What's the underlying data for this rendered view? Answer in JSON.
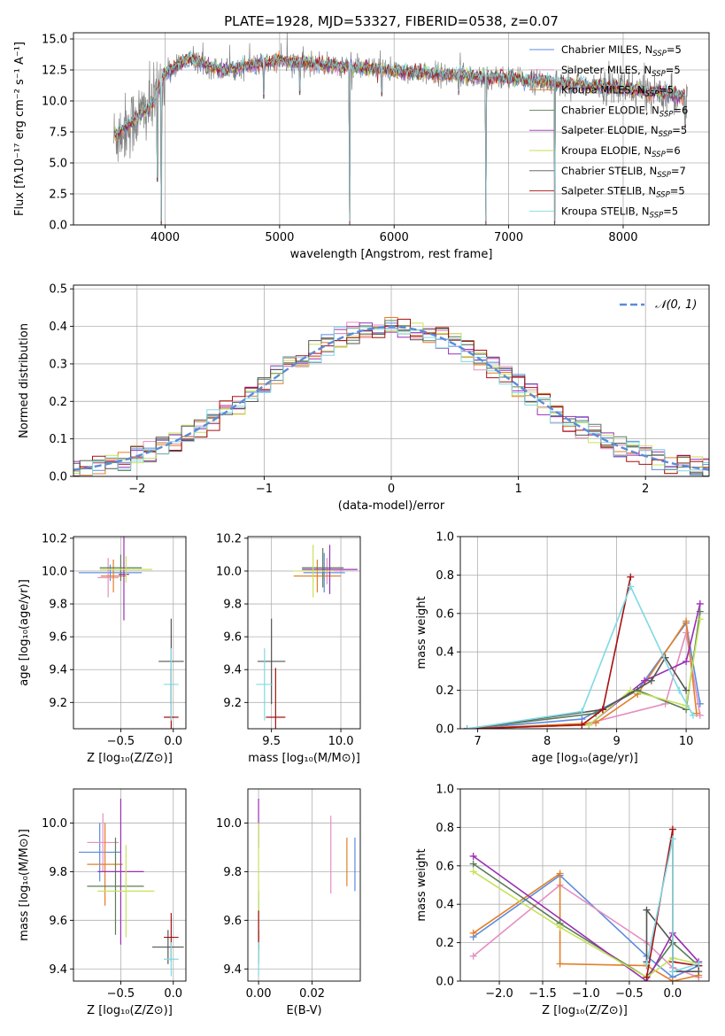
{
  "title": "PLATE=1928, MJD=53327, FIBERID=0538, z=0.07",
  "colors": {
    "chabrier_miles": "#5b8be0",
    "salpeter_miles": "#e58fc0",
    "kroupa_miles": "#e37f28",
    "chabrier_elodie": "#5b7d58",
    "salpeter_elodie": "#9a2fb5",
    "kroupa_elodie": "#c6e25a",
    "chabrier_stelib": "#555555",
    "salpeter_stelib": "#a81010",
    "kroupa_stelib": "#7fd9e3",
    "data": "#808080",
    "gaussian": "#5b8bd8"
  },
  "chart_data": [
    {
      "id": "spectrum",
      "type": "line",
      "title": "PLATE=1928, MJD=53327, FIBERID=0538, z=0.07",
      "xlabel": "wavelength [Angstrom, rest frame]",
      "ylabel": "Flux [fλ10⁻¹⁷ erg cm⁻² s⁻¹ A⁻¹]",
      "xlim": [
        3200,
        8750
      ],
      "ylim": [
        0,
        15.5
      ],
      "xticks": [
        "4000",
        "5000",
        "6000",
        "7000",
        "8000"
      ],
      "yticks": [
        "0.0",
        "2.5",
        "5.0",
        "7.5",
        "10.0",
        "12.5",
        "15.0"
      ],
      "legend_position": "top-right",
      "legend": [
        {
          "label": "Chabrier MILES, N",
          "sub": "SSP",
          "tail": "=5",
          "color_key": "chabrier_miles"
        },
        {
          "label": "Salpeter MILES, N",
          "sub": "SSP",
          "tail": "=5",
          "color_key": "salpeter_miles"
        },
        {
          "label": "Kroupa MILES, N",
          "sub": "SSP",
          "tail": "=5",
          "color_key": "kroupa_miles"
        },
        {
          "label": "Chabrier ELODIE, N",
          "sub": "SSP",
          "tail": "=6",
          "color_key": "chabrier_elodie"
        },
        {
          "label": "Salpeter ELODIE, N",
          "sub": "SSP",
          "tail": "=5",
          "color_key": "salpeter_elodie"
        },
        {
          "label": "Kroupa ELODIE, N",
          "sub": "SSP",
          "tail": "=6",
          "color_key": "kroupa_elodie"
        },
        {
          "label": "Chabrier STELIB, N",
          "sub": "SSP",
          "tail": "=7",
          "color_key": "chabrier_stelib"
        },
        {
          "label": "Salpeter STELIB, N",
          "sub": "SSP",
          "tail": "=5",
          "color_key": "salpeter_stelib"
        },
        {
          "label": "Kroupa STELIB, N",
          "sub": "SSP",
          "tail": "=5",
          "color_key": "kroupa_stelib"
        }
      ],
      "continuum_anchors": [
        [
          3550,
          7.0
        ],
        [
          3700,
          8.2
        ],
        [
          3900,
          9.8
        ],
        [
          4000,
          12.2
        ],
        [
          4200,
          13.4
        ],
        [
          4500,
          12.5
        ],
        [
          5000,
          13.2
        ],
        [
          5500,
          12.8
        ],
        [
          6000,
          12.4
        ],
        [
          6500,
          12.1
        ],
        [
          7000,
          11.8
        ],
        [
          7500,
          11.4
        ],
        [
          8000,
          11.0
        ],
        [
          8400,
          10.6
        ],
        [
          8560,
          10.3
        ]
      ],
      "absorption_lines": [
        [
          3934,
          3.5
        ],
        [
          3969,
          0.0
        ],
        [
          4861,
          10.2
        ],
        [
          5175,
          10.5
        ],
        [
          5612,
          0.0
        ],
        [
          5893,
          10.4
        ],
        [
          6563,
          10.5
        ],
        [
          6800,
          0.0
        ],
        [
          7400,
          0.0
        ],
        [
          8542,
          7.8
        ]
      ]
    },
    {
      "id": "residuals",
      "type": "line",
      "xlabel": "(data-model)/error",
      "ylabel": "Normed distribution",
      "xlim": [
        -2.5,
        2.5
      ],
      "ylim": [
        0,
        0.51
      ],
      "xticks": [
        "−2",
        "−1",
        "0",
        "1",
        "2"
      ],
      "yticks": [
        "0.0",
        "0.1",
        "0.2",
        "0.3",
        "0.4",
        "0.5"
      ],
      "legend_position": "top-right",
      "gaussian_label": "𝒩(0, 1)",
      "bin_width": 0.1
    },
    {
      "id": "age_vs_Z",
      "type": "scatter",
      "xlabel": "Z [log₁₀(Z/Z⊙)]",
      "ylabel": "age  [log₁₀(age/yr)]",
      "xlim": [
        -0.95,
        0.12
      ],
      "ylim": [
        9.04,
        10.21
      ],
      "xticks": [
        "−0.5",
        "0.0"
      ],
      "yticks": [
        "9.2",
        "9.4",
        "9.6",
        "9.8",
        "10.0",
        "10.2"
      ],
      "points": [
        {
          "k": "chabrier_miles",
          "x": -0.6,
          "xe": 0.3,
          "y": 9.99,
          "ye": 0.05
        },
        {
          "k": "salpeter_miles",
          "x": -0.62,
          "xe": 0.1,
          "y": 9.96,
          "ye": 0.12
        },
        {
          "k": "kroupa_miles",
          "x": -0.57,
          "xe": 0.12,
          "y": 9.97,
          "ye": 0.1
        },
        {
          "k": "chabrier_elodie",
          "x": -0.5,
          "xe": 0.2,
          "y": 10.02,
          "ye": 0.08
        },
        {
          "k": "salpeter_elodie",
          "x": -0.47,
          "xe": 0.05,
          "y": 9.98,
          "ye": 0.28
        },
        {
          "k": "kroupa_elodie",
          "x": -0.45,
          "xe": 0.25,
          "y": 10.01,
          "ye": 0.08
        },
        {
          "k": "chabrier_stelib",
          "x": -0.02,
          "xe": 0.12,
          "y": 9.45,
          "ye": 0.26
        },
        {
          "k": "salpeter_stelib",
          "x": -0.02,
          "xe": 0.07,
          "y": 9.11,
          "ye": 0.3
        },
        {
          "k": "kroupa_stelib",
          "x": -0.02,
          "xe": 0.07,
          "y": 9.31,
          "ye": 0.22
        }
      ]
    },
    {
      "id": "age_vs_mass",
      "type": "scatter",
      "xlabel": "mass [log₁₀(M/M⊙)]",
      "ylabel": "",
      "xlim": [
        9.33,
        10.14
      ],
      "ylim": [
        9.04,
        10.21
      ],
      "xticks": [
        "9.5",
        "10.0"
      ],
      "yticks": [
        "9.2",
        "9.4",
        "9.6",
        "9.8",
        "10.0",
        "10.2"
      ],
      "points": [
        {
          "k": "chabrier_miles",
          "x": 9.88,
          "xe": 0.15,
          "y": 9.99,
          "ye": 0.12
        },
        {
          "k": "salpeter_miles",
          "x": 9.9,
          "xe": 0.12,
          "y": 10.0,
          "ye": 0.08
        },
        {
          "k": "kroupa_miles",
          "x": 9.83,
          "xe": 0.17,
          "y": 9.97,
          "ye": 0.1
        },
        {
          "k": "chabrier_elodie",
          "x": 9.87,
          "xe": 0.15,
          "y": 10.02,
          "ye": 0.12
        },
        {
          "k": "salpeter_elodie",
          "x": 9.92,
          "xe": 0.2,
          "y": 10.01,
          "ye": 0.15
        },
        {
          "k": "kroupa_elodie",
          "x": 9.8,
          "xe": 0.15,
          "y": 10.0,
          "ye": 0.16
        },
        {
          "k": "chabrier_stelib",
          "x": 9.5,
          "xe": 0.1,
          "y": 9.45,
          "ye": 0.26
        },
        {
          "k": "salpeter_stelib",
          "x": 9.53,
          "xe": 0.07,
          "y": 9.11,
          "ye": 0.3
        },
        {
          "k": "kroupa_stelib",
          "x": 9.45,
          "xe": 0.06,
          "y": 9.31,
          "ye": 0.22
        }
      ]
    },
    {
      "id": "weight_vs_age",
      "type": "line",
      "xlabel": "age  [log₁₀(age/yr)]",
      "ylabel": "mass weight",
      "xlim": [
        6.75,
        10.33
      ],
      "ylim": [
        0,
        1.0
      ],
      "xticks": [
        "7",
        "8",
        "9",
        "10"
      ],
      "yticks": [
        "0.0",
        "0.2",
        "0.4",
        "0.6",
        "0.8",
        "1.0"
      ],
      "series": [
        {
          "k": "chabrier_miles",
          "x": [
            6.85,
            8.5,
            9.3,
            10.0,
            10.2
          ],
          "y": [
            0.0,
            0.05,
            0.2,
            0.55,
            0.13
          ]
        },
        {
          "k": "salpeter_miles",
          "x": [
            6.85,
            8.5,
            9.7,
            10.0,
            10.2
          ],
          "y": [
            0.0,
            0.02,
            0.13,
            0.5,
            0.07
          ]
        },
        {
          "k": "kroupa_miles",
          "x": [
            6.85,
            8.7,
            9.3,
            10.0,
            10.15
          ],
          "y": [
            0.0,
            0.03,
            0.18,
            0.56,
            0.08
          ]
        },
        {
          "k": "chabrier_elodie",
          "x": [
            6.85,
            8.7,
            9.3,
            10.0,
            10.2
          ],
          "y": [
            0.0,
            0.08,
            0.2,
            0.1,
            0.61
          ]
        },
        {
          "k": "salpeter_elodie",
          "x": [
            6.85,
            8.6,
            9.4,
            10.0,
            10.2
          ],
          "y": [
            0.0,
            0.02,
            0.25,
            0.35,
            0.65
          ]
        },
        {
          "k": "kroupa_elodie",
          "x": [
            6.85,
            8.6,
            9.2,
            10.0,
            10.2
          ],
          "y": [
            0.0,
            0.02,
            0.2,
            0.12,
            0.57
          ]
        },
        {
          "k": "chabrier_stelib",
          "x": [
            6.85,
            8.8,
            9.5,
            9.7,
            10.0
          ],
          "y": [
            0.0,
            0.1,
            0.25,
            0.37,
            0.2
          ]
        },
        {
          "k": "salpeter_stelib",
          "x": [
            6.85,
            8.5,
            8.8,
            9.2
          ],
          "y": [
            0.0,
            0.02,
            0.1,
            0.79
          ]
        },
        {
          "k": "kroupa_stelib",
          "x": [
            6.85,
            8.5,
            9.2,
            9.9,
            10.1
          ],
          "y": [
            0.0,
            0.09,
            0.74,
            0.2,
            0.07
          ]
        }
      ]
    },
    {
      "id": "mass_vs_Z",
      "type": "scatter",
      "xlabel": "Z [log₁₀(Z/Z⊙)]",
      "ylabel": "mass [log₁₀(M/M⊙)]",
      "xlim": [
        -0.95,
        0.12
      ],
      "ylim": [
        9.35,
        10.14
      ],
      "xticks": [
        "−0.5",
        "0.0"
      ],
      "yticks": [
        "9.4",
        "9.6",
        "9.8",
        "10.0"
      ],
      "points": [
        {
          "k": "chabrier_miles",
          "x": -0.7,
          "xe": 0.2,
          "y": 9.88,
          "ye": 0.12
        },
        {
          "k": "salpeter_miles",
          "x": -0.67,
          "xe": 0.15,
          "y": 9.92,
          "ye": 0.12
        },
        {
          "k": "kroupa_miles",
          "x": -0.65,
          "xe": 0.17,
          "y": 9.83,
          "ye": 0.17
        },
        {
          "k": "chabrier_elodie",
          "x": -0.55,
          "xe": 0.27,
          "y": 9.74,
          "ye": 0.2
        },
        {
          "k": "salpeter_elodie",
          "x": -0.5,
          "xe": 0.22,
          "y": 9.8,
          "ye": 0.3
        },
        {
          "k": "kroupa_elodie",
          "x": -0.45,
          "xe": 0.27,
          "y": 9.72,
          "ye": 0.19
        },
        {
          "k": "chabrier_stelib",
          "x": -0.05,
          "xe": 0.15,
          "y": 9.49,
          "ye": 0.07
        },
        {
          "k": "salpeter_stelib",
          "x": -0.02,
          "xe": 0.07,
          "y": 9.53,
          "ye": 0.1
        },
        {
          "k": "kroupa_stelib",
          "x": -0.02,
          "xe": 0.07,
          "y": 9.44,
          "ye": 0.07
        }
      ]
    },
    {
      "id": "mass_vs_ebv",
      "type": "scatter",
      "xlabel": "E(B-V)",
      "ylabel": "",
      "xlim": [
        -0.004,
        0.038
      ],
      "ylim": [
        9.35,
        10.14
      ],
      "xticks": [
        "0.00",
        "0.02"
      ],
      "yticks": [
        "9.4",
        "9.6",
        "9.8",
        "10.0"
      ],
      "points": [
        {
          "k": "chabrier_miles",
          "x": 0.036,
          "xe": 0.0,
          "y": 9.83,
          "ye": 0.11
        },
        {
          "k": "salpeter_miles",
          "x": 0.027,
          "xe": 0.0,
          "y": 9.87,
          "ye": 0.16
        },
        {
          "k": "kroupa_miles",
          "x": 0.033,
          "xe": 0.0,
          "y": 9.84,
          "ye": 0.1
        },
        {
          "k": "chabrier_elodie",
          "x": 0.0,
          "xe": 0.0,
          "y": 9.62,
          "ye": 0.1
        },
        {
          "k": "salpeter_elodie",
          "x": 0.0,
          "xe": 0.0,
          "y": 10.0,
          "ye": 0.1
        },
        {
          "k": "kroupa_elodie",
          "x": 0.0,
          "xe": 0.0,
          "y": 9.72,
          "ye": 0.28
        },
        {
          "k": "chabrier_stelib",
          "x": 0.0,
          "xe": 0.0,
          "y": 9.49,
          "ye": 0.07
        },
        {
          "k": "salpeter_stelib",
          "x": 0.0,
          "xe": 0.0,
          "y": 9.56,
          "ye": 0.08
        },
        {
          "k": "kroupa_stelib",
          "x": 0.0,
          "xe": 0.0,
          "y": 9.44,
          "ye": 0.07
        }
      ]
    },
    {
      "id": "weight_vs_Z",
      "type": "line",
      "xlabel": "Z [log₁₀(Z/Z⊙)]",
      "ylabel": "mass weight",
      "xlim": [
        -2.45,
        0.42
      ],
      "ylim": [
        0,
        1.0
      ],
      "xticks": [
        "−2.0",
        "−1.5",
        "−1.0",
        "−0.5",
        "0.0"
      ],
      "yticks": [
        "0.0",
        "0.2",
        "0.4",
        "0.6",
        "0.8",
        "1.0"
      ],
      "series": [
        {
          "k": "chabrier_miles",
          "x": [
            -2.3,
            -1.3,
            -0.3,
            0.0,
            0.3
          ],
          "y": [
            0.23,
            0.55,
            0.13,
            0.02,
            0.08
          ]
        },
        {
          "k": "salpeter_miles",
          "x": [
            -2.3,
            -1.3,
            -0.3,
            0.0,
            0.3
          ],
          "y": [
            0.13,
            0.5,
            0.2,
            0.07,
            0.02
          ]
        },
        {
          "k": "kroupa_miles",
          "x": [
            -2.3,
            -1.3,
            -1.3,
            -0.3,
            0.0,
            0.3
          ],
          "y": [
            0.25,
            0.56,
            0.09,
            0.08,
            0.0,
            0.03
          ]
        },
        {
          "k": "chabrier_elodie",
          "x": [
            -2.3,
            -1.3,
            -0.3,
            0.0,
            0.3
          ],
          "y": [
            0.61,
            0.3,
            0.02,
            0.2,
            0.08
          ]
        },
        {
          "k": "salpeter_elodie",
          "x": [
            -2.3,
            -0.3,
            0.0,
            0.3
          ],
          "y": [
            0.65,
            0.0,
            0.25,
            0.1
          ]
        },
        {
          "k": "kroupa_elodie",
          "x": [
            -2.3,
            -1.3,
            -0.3,
            0.0,
            0.3
          ],
          "y": [
            0.57,
            0.28,
            0.02,
            0.12,
            0.09
          ]
        },
        {
          "k": "chabrier_stelib",
          "x": [
            -0.3,
            -0.3,
            0.0,
            0.0,
            0.3
          ],
          "y": [
            0.1,
            0.37,
            0.2,
            0.05,
            0.05
          ]
        },
        {
          "k": "salpeter_stelib",
          "x": [
            -0.3,
            0.0,
            0.0,
            0.3
          ],
          "y": [
            0.02,
            0.79,
            0.1,
            0.08
          ]
        },
        {
          "k": "kroupa_stelib",
          "x": [
            -0.3,
            0.0,
            0.0,
            0.3
          ],
          "y": [
            0.09,
            0.74,
            0.05,
            0.09
          ]
        }
      ]
    }
  ]
}
